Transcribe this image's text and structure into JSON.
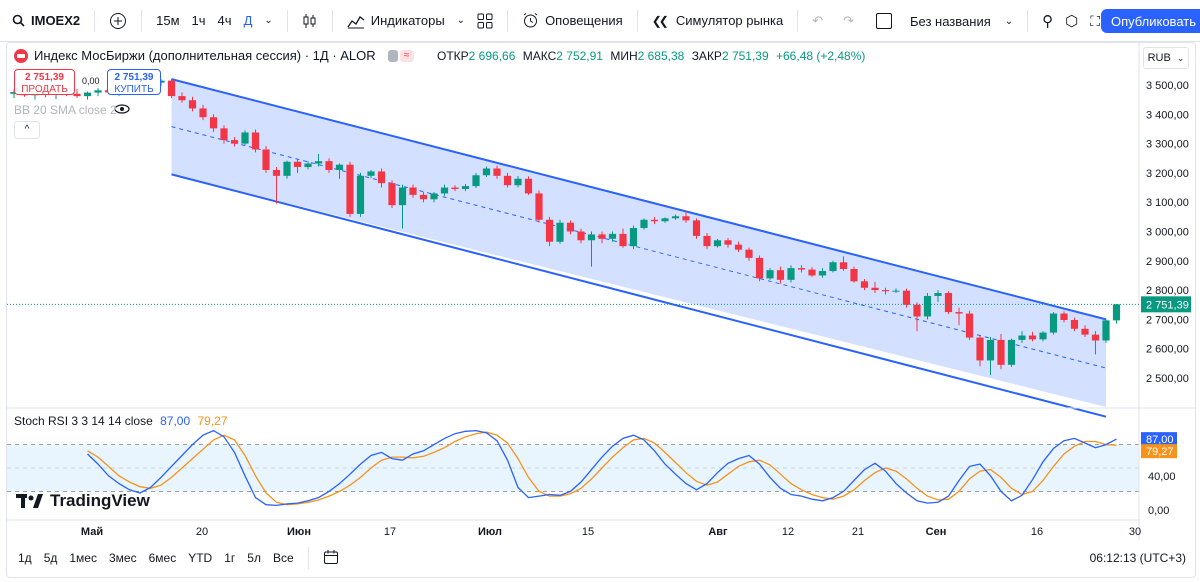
{
  "toolbar": {
    "symbol": "IMOEX2",
    "timeframes": [
      "15м",
      "1ч",
      "4ч",
      "Д"
    ],
    "indicators_label": "Индикаторы",
    "alerts_label": "Оповещения",
    "simulator_label": "Симулятор рынка",
    "layout_name": "Без названия",
    "publish_label": "Опубликовать"
  },
  "legend": {
    "title": "Индекс МосБиржи (дополнительная сессия) · 1Д · ALOR",
    "open_label": "ОТКР",
    "open": "2 696,66",
    "high_label": "МАКС",
    "high": "2 752,91",
    "low_label": "МИН",
    "low": "2 685,38",
    "close_label": "ЗАКР",
    "close": "2 751,39",
    "change": "+66,48 (+2,48%)"
  },
  "trade": {
    "sell_price": "2 751,39",
    "sell_label": "ПРОДАТЬ",
    "spread": "0,00",
    "buy_price": "2 751,39",
    "buy_label": "КУПИТЬ"
  },
  "bb_label": "BB 20 SMA close 2",
  "currency": "RUB",
  "stoch": {
    "label": "Stoch RSI 3 3 14 14 close",
    "k": "87,00",
    "d": "79,27"
  },
  "brand": "TradingView",
  "bottom": {
    "ranges": [
      "1д",
      "5д",
      "1мес",
      "3мес",
      "6мес",
      "YTD",
      "1г",
      "5л",
      "Все"
    ],
    "clock": "06:12:13 (UTC+3)"
  },
  "colors": {
    "up": "#089981",
    "down": "#f23645",
    "channel": "#2962ff",
    "k": "#2962ff",
    "d": "#f7931a"
  },
  "chart_data": {
    "type": "candlestick",
    "price_axis": {
      "ticks": [
        "3 500,00",
        "3 400,00",
        "3 300,00",
        "3 200,00",
        "3 100,00",
        "3 000,00",
        "2 900,00",
        "2 800,00",
        "2 700,00",
        "2 600,00",
        "2 500,00"
      ],
      "last": "2 751,39"
    },
    "x_axis": {
      "ticks": [
        "Май",
        "20",
        "Июн",
        "17",
        "Июл",
        "15",
        "Авг",
        "12",
        "21",
        "Сен",
        "16",
        "30"
      ]
    },
    "candles": [
      {
        "o": 3470,
        "h": 3485,
        "l": 3455,
        "c": 3476
      },
      {
        "o": 3476,
        "h": 3490,
        "l": 3460,
        "c": 3465
      },
      {
        "o": 3465,
        "h": 3480,
        "l": 3450,
        "c": 3472
      },
      {
        "o": 3472,
        "h": 3486,
        "l": 3458,
        "c": 3468
      },
      {
        "o": 3468,
        "h": 3482,
        "l": 3452,
        "c": 3478
      },
      {
        "o": 3478,
        "h": 3492,
        "l": 3462,
        "c": 3470
      },
      {
        "o": 3470,
        "h": 3486,
        "l": 3456,
        "c": 3462
      },
      {
        "o": 3462,
        "h": 3478,
        "l": 3450,
        "c": 3474
      },
      {
        "o": 3474,
        "h": 3490,
        "l": 3462,
        "c": 3482
      },
      {
        "o": 3482,
        "h": 3496,
        "l": 3470,
        "c": 3475
      },
      {
        "o": 3475,
        "h": 3490,
        "l": 3462,
        "c": 3486
      },
      {
        "o": 3486,
        "h": 3500,
        "l": 3474,
        "c": 3492
      },
      {
        "o": 3492,
        "h": 3506,
        "l": 3480,
        "c": 3498
      },
      {
        "o": 3498,
        "h": 3512,
        "l": 3486,
        "c": 3508
      },
      {
        "o": 3508,
        "h": 3520,
        "l": 3496,
        "c": 3515
      },
      {
        "o": 3515,
        "h": 3520,
        "l": 3455,
        "c": 3462
      },
      {
        "o": 3462,
        "h": 3475,
        "l": 3440,
        "c": 3448
      },
      {
        "o": 3448,
        "h": 3460,
        "l": 3410,
        "c": 3420
      },
      {
        "o": 3420,
        "h": 3432,
        "l": 3380,
        "c": 3390
      },
      {
        "o": 3390,
        "h": 3400,
        "l": 3340,
        "c": 3352
      },
      {
        "o": 3352,
        "h": 3362,
        "l": 3300,
        "c": 3312
      },
      {
        "o": 3312,
        "h": 3322,
        "l": 3290,
        "c": 3300
      },
      {
        "o": 3300,
        "h": 3345,
        "l": 3295,
        "c": 3338
      },
      {
        "o": 3338,
        "h": 3348,
        "l": 3270,
        "c": 3280
      },
      {
        "o": 3280,
        "h": 3292,
        "l": 3200,
        "c": 3210
      },
      {
        "o": 3210,
        "h": 3220,
        "l": 3095,
        "c": 3190
      },
      {
        "o": 3190,
        "h": 3242,
        "l": 3180,
        "c": 3238
      },
      {
        "o": 3238,
        "h": 3248,
        "l": 3200,
        "c": 3220
      },
      {
        "o": 3220,
        "h": 3240,
        "l": 3212,
        "c": 3232
      },
      {
        "o": 3232,
        "h": 3265,
        "l": 3222,
        "c": 3240
      },
      {
        "o": 3240,
        "h": 3250,
        "l": 3200,
        "c": 3210
      },
      {
        "o": 3210,
        "h": 3232,
        "l": 3180,
        "c": 3228
      },
      {
        "o": 3228,
        "h": 3238,
        "l": 3050,
        "c": 3060
      },
      {
        "o": 3060,
        "h": 3200,
        "l": 3050,
        "c": 3190
      },
      {
        "o": 3190,
        "h": 3210,
        "l": 3182,
        "c": 3205
      },
      {
        "o": 3205,
        "h": 3215,
        "l": 3150,
        "c": 3165
      },
      {
        "o": 3165,
        "h": 3175,
        "l": 3080,
        "c": 3090
      },
      {
        "o": 3090,
        "h": 3160,
        "l": 3010,
        "c": 3150
      },
      {
        "o": 3150,
        "h": 3160,
        "l": 3115,
        "c": 3125
      },
      {
        "o": 3125,
        "h": 3135,
        "l": 3100,
        "c": 3110
      },
      {
        "o": 3110,
        "h": 3135,
        "l": 3100,
        "c": 3130
      },
      {
        "o": 3130,
        "h": 3160,
        "l": 3122,
        "c": 3150
      },
      {
        "o": 3150,
        "h": 3158,
        "l": 3138,
        "c": 3145
      },
      {
        "o": 3145,
        "h": 3162,
        "l": 3138,
        "c": 3155
      },
      {
        "o": 3155,
        "h": 3200,
        "l": 3148,
        "c": 3192
      },
      {
        "o": 3192,
        "h": 3222,
        "l": 3186,
        "c": 3215
      },
      {
        "o": 3215,
        "h": 3225,
        "l": 3180,
        "c": 3190
      },
      {
        "o": 3190,
        "h": 3200,
        "l": 3150,
        "c": 3158
      },
      {
        "o": 3158,
        "h": 3190,
        "l": 3150,
        "c": 3180
      },
      {
        "o": 3180,
        "h": 3188,
        "l": 3125,
        "c": 3130
      },
      {
        "o": 3130,
        "h": 3140,
        "l": 3030,
        "c": 3040
      },
      {
        "o": 3040,
        "h": 3050,
        "l": 2950,
        "c": 2965
      },
      {
        "o": 2965,
        "h": 3040,
        "l": 2958,
        "c": 3030
      },
      {
        "o": 3030,
        "h": 3038,
        "l": 2990,
        "c": 3000
      },
      {
        "o": 3000,
        "h": 3010,
        "l": 2960,
        "c": 2970
      },
      {
        "o": 2970,
        "h": 3000,
        "l": 2880,
        "c": 2990
      },
      {
        "o": 2990,
        "h": 3000,
        "l": 2960,
        "c": 2975
      },
      {
        "o": 2975,
        "h": 3000,
        "l": 2965,
        "c": 2992
      },
      {
        "o": 2992,
        "h": 3010,
        "l": 2945,
        "c": 2950
      },
      {
        "o": 2950,
        "h": 3020,
        "l": 2940,
        "c": 3012
      },
      {
        "o": 3012,
        "h": 3045,
        "l": 3006,
        "c": 3040
      },
      {
        "o": 3040,
        "h": 3050,
        "l": 3025,
        "c": 3035
      },
      {
        "o": 3035,
        "h": 3048,
        "l": 3030,
        "c": 3045
      },
      {
        "o": 3045,
        "h": 3058,
        "l": 3040,
        "c": 3052
      },
      {
        "o": 3052,
        "h": 3070,
        "l": 3030,
        "c": 3038
      },
      {
        "o": 3038,
        "h": 3045,
        "l": 2975,
        "c": 2985
      },
      {
        "o": 2985,
        "h": 2995,
        "l": 2940,
        "c": 2950
      },
      {
        "o": 2950,
        "h": 2975,
        "l": 2945,
        "c": 2970
      },
      {
        "o": 2970,
        "h": 2978,
        "l": 2945,
        "c": 2955
      },
      {
        "o": 2955,
        "h": 2965,
        "l": 2930,
        "c": 2938
      },
      {
        "o": 2938,
        "h": 2945,
        "l": 2900,
        "c": 2910
      },
      {
        "o": 2910,
        "h": 2918,
        "l": 2830,
        "c": 2840
      },
      {
        "o": 2840,
        "h": 2875,
        "l": 2835,
        "c": 2868
      },
      {
        "o": 2868,
        "h": 2880,
        "l": 2822,
        "c": 2835
      },
      {
        "o": 2835,
        "h": 2885,
        "l": 2826,
        "c": 2875
      },
      {
        "o": 2875,
        "h": 2885,
        "l": 2860,
        "c": 2870
      },
      {
        "o": 2870,
        "h": 2878,
        "l": 2845,
        "c": 2850
      },
      {
        "o": 2850,
        "h": 2875,
        "l": 2842,
        "c": 2865
      },
      {
        "o": 2865,
        "h": 2900,
        "l": 2860,
        "c": 2895
      },
      {
        "o": 2895,
        "h": 2915,
        "l": 2866,
        "c": 2872
      },
      {
        "o": 2872,
        "h": 2880,
        "l": 2825,
        "c": 2830
      },
      {
        "o": 2830,
        "h": 2838,
        "l": 2800,
        "c": 2808
      },
      {
        "o": 2808,
        "h": 2828,
        "l": 2790,
        "c": 2800
      },
      {
        "o": 2800,
        "h": 2808,
        "l": 2785,
        "c": 2796
      },
      {
        "o": 2796,
        "h": 2806,
        "l": 2790,
        "c": 2798
      },
      {
        "o": 2798,
        "h": 2805,
        "l": 2740,
        "c": 2750
      },
      {
        "o": 2750,
        "h": 2758,
        "l": 2660,
        "c": 2710
      },
      {
        "o": 2710,
        "h": 2790,
        "l": 2700,
        "c": 2780
      },
      {
        "o": 2780,
        "h": 2800,
        "l": 2760,
        "c": 2790
      },
      {
        "o": 2790,
        "h": 2796,
        "l": 2718,
        "c": 2725
      },
      {
        "o": 2725,
        "h": 2740,
        "l": 2680,
        "c": 2720
      },
      {
        "o": 2720,
        "h": 2730,
        "l": 2630,
        "c": 2638
      },
      {
        "o": 2638,
        "h": 2645,
        "l": 2540,
        "c": 2560
      },
      {
        "o": 2560,
        "h": 2640,
        "l": 2510,
        "c": 2630
      },
      {
        "o": 2630,
        "h": 2650,
        "l": 2530,
        "c": 2545
      },
      {
        "o": 2545,
        "h": 2635,
        "l": 2538,
        "c": 2630
      },
      {
        "o": 2630,
        "h": 2660,
        "l": 2620,
        "c": 2645
      },
      {
        "o": 2645,
        "h": 2658,
        "l": 2625,
        "c": 2632
      },
      {
        "o": 2632,
        "h": 2660,
        "l": 2625,
        "c": 2655
      },
      {
        "o": 2655,
        "h": 2725,
        "l": 2648,
        "c": 2720
      },
      {
        "o": 2720,
        "h": 2728,
        "l": 2690,
        "c": 2698
      },
      {
        "o": 2698,
        "h": 2706,
        "l": 2660,
        "c": 2668
      },
      {
        "o": 2668,
        "h": 2680,
        "l": 2640,
        "c": 2648
      },
      {
        "o": 2648,
        "h": 2660,
        "l": 2580,
        "c": 2628
      },
      {
        "o": 2628,
        "h": 2700,
        "l": 2620,
        "c": 2696.66
      },
      {
        "o": 2696.66,
        "h": 2752.91,
        "l": 2685.38,
        "c": 2751.39
      }
    ],
    "channel": {
      "upper": [
        [
          15,
          3520
        ],
        [
          104,
          2700
        ]
      ],
      "lower": [
        [
          15,
          3195
        ],
        [
          104,
          2368
        ]
      ],
      "mid": [
        [
          15,
          3358
        ],
        [
          104,
          2534
        ]
      ]
    },
    "stoch_rsi": {
      "axis_ticks": [
        "87,00",
        "79,27",
        "40,00",
        "0,00"
      ],
      "k": [
        68,
        55,
        40,
        30,
        22,
        18,
        25,
        38,
        52,
        66,
        80,
        92,
        98,
        90,
        70,
        40,
        12,
        3,
        2,
        4,
        5,
        8,
        12,
        20,
        30,
        42,
        55,
        66,
        70,
        62,
        60,
        68,
        72,
        80,
        88,
        94,
        97,
        98,
        95,
        85,
        60,
        25,
        12,
        14,
        16,
        15,
        20,
        32,
        48,
        64,
        78,
        88,
        92,
        86,
        72,
        55,
        42,
        30,
        22,
        30,
        44,
        56,
        62,
        66,
        55,
        38,
        24,
        16,
        14,
        10,
        8,
        12,
        20,
        34,
        48,
        56,
        46,
        30,
        18,
        8,
        5,
        6,
        14,
        34,
        52,
        55,
        40,
        20,
        8,
        15,
        35,
        58,
        75,
        85,
        88,
        82,
        76,
        80,
        87
      ],
      "d": [
        72,
        64,
        52,
        40,
        32,
        26,
        24,
        28,
        38,
        50,
        62,
        74,
        86,
        92,
        86,
        66,
        40,
        18,
        6,
        3,
        4,
        6,
        9,
        14,
        20,
        28,
        38,
        50,
        60,
        64,
        64,
        63,
        65,
        70,
        76,
        84,
        90,
        94,
        96,
        92,
        82,
        62,
        38,
        20,
        14,
        14,
        17,
        24,
        36,
        50,
        64,
        76,
        86,
        88,
        82,
        70,
        57,
        44,
        33,
        28,
        32,
        42,
        52,
        58,
        60,
        54,
        42,
        30,
        22,
        16,
        12,
        10,
        14,
        22,
        34,
        44,
        50,
        46,
        36,
        24,
        14,
        9,
        10,
        20,
        36,
        46,
        48,
        38,
        24,
        16,
        20,
        34,
        52,
        68,
        78,
        84,
        84,
        80,
        79.27
      ]
    }
  }
}
